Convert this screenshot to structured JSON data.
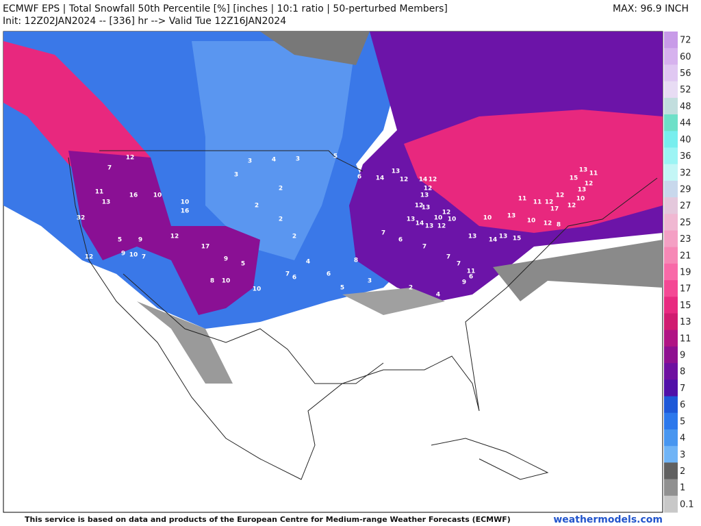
{
  "header": {
    "title": "ECMWF EPS | Total Snowfall 50th Percentile [%] [inches | 10:1 ratio | 50-perturbed Members]",
    "init": "Init: 12Z02JAN2024 -- [336] hr --> Valid Tue 12Z16JAN2024",
    "max": "MAX: 96.9 INCH"
  },
  "colorbar": {
    "levels": [
      72,
      60,
      56,
      52,
      48,
      44,
      40,
      36,
      32,
      29,
      27,
      25,
      23,
      21,
      19,
      17,
      15,
      13,
      11,
      9,
      8,
      7,
      6,
      5,
      4,
      3,
      2,
      1,
      0.1
    ],
    "colors": [
      "#c89be8",
      "#d6b2ee",
      "#e0c8f2",
      "#e8dcf4",
      "#c2dede",
      "#6ee0c8",
      "#78eeee",
      "#9cf4f4",
      "#c4f6f6",
      "#c8d8ec",
      "#e4c8dc",
      "#f0b8d2",
      "#f4a0c4",
      "#f688b6",
      "#f86aa8",
      "#f44894",
      "#e82a80",
      "#d01c70",
      "#b01484",
      "#8e1090",
      "#6e10a0",
      "#5010a8",
      "#1e58d8",
      "#2c78ec",
      "#4896f0",
      "#70b4f6",
      "#606060",
      "#909090",
      "#c8c8c8"
    ]
  },
  "map": {
    "labels": [
      12,
      7,
      11,
      32,
      13,
      16,
      10,
      10,
      16,
      12,
      9,
      5,
      9,
      10,
      7,
      12,
      17,
      9,
      5,
      8,
      10,
      10,
      3,
      3,
      4,
      3,
      2,
      2,
      2,
      2,
      5,
      6,
      14,
      13,
      12,
      14,
      12,
      12,
      13,
      12,
      13,
      12,
      10,
      10,
      13,
      14,
      13,
      12,
      13,
      14,
      13,
      15,
      10,
      13,
      11,
      11,
      12,
      12,
      17,
      12,
      10,
      13,
      11,
      15,
      12,
      13,
      10,
      12,
      8,
      6,
      9,
      11,
      4,
      6,
      7,
      6,
      5,
      3,
      2,
      4,
      8,
      7,
      6,
      7,
      7,
      7
    ]
  },
  "footer": {
    "credit": "This service is based on data and products of the European Centre for Medium-range Weather Forecasts (ECMWF)",
    "site": "weathermodels.com"
  }
}
